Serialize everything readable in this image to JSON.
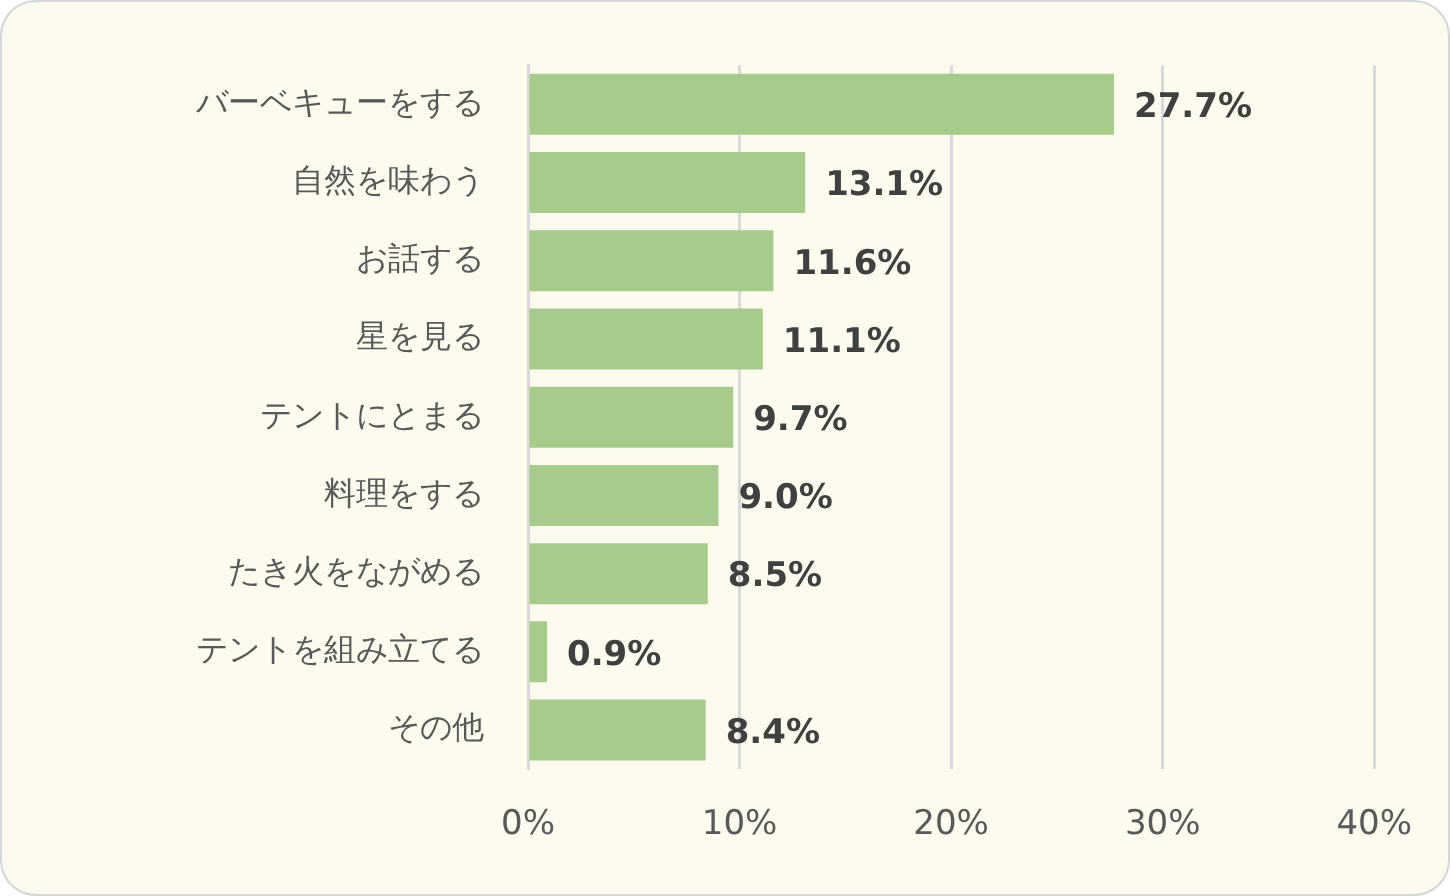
{
  "chart_data": {
    "type": "bar",
    "orientation": "horizontal",
    "categories": [
      "バーベキューをする",
      "自然を味わう",
      "お話する",
      "星を見る",
      "テントにとまる",
      "料理をする",
      "たき火をながめる",
      "テントを組み立てる",
      "その他"
    ],
    "values": [
      27.7,
      13.1,
      11.6,
      11.1,
      9.7,
      9.0,
      8.5,
      0.9,
      8.4
    ],
    "value_labels": [
      "27.7%",
      "13.1%",
      "11.6%",
      "11.1%",
      "9.7%",
      "9.0%",
      "8.5%",
      "0.9%",
      "8.4%"
    ],
    "color": "#a6cb8b",
    "xlim": [
      0,
      40
    ],
    "xticks": [
      {
        "value": 0,
        "label": "0%"
      },
      {
        "value": 10,
        "label": "10%"
      },
      {
        "value": 20,
        "label": "20%"
      },
      {
        "value": 30,
        "label": "30%"
      },
      {
        "value": 40,
        "label": "40%"
      }
    ],
    "grid": "x",
    "legend": false
  }
}
